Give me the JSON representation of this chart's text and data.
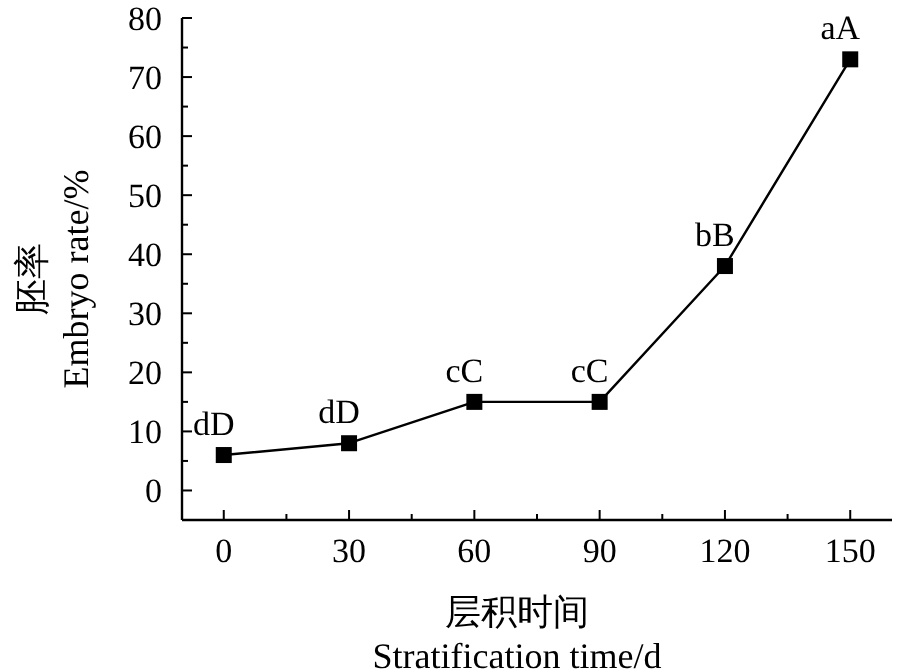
{
  "chart_data": {
    "type": "line",
    "xlabel": "层积时间\nStratification time/d",
    "ylabel": "胚率\nEmbryo rate/%",
    "x": [
      0,
      30,
      60,
      90,
      120,
      150
    ],
    "series": [
      {
        "color": "#000000",
        "values": [
          6,
          8,
          15,
          15,
          38,
          73
        ]
      }
    ],
    "xlim": [
      -10,
      160
    ],
    "xticks": [
      0,
      30,
      60,
      90,
      120,
      150
    ],
    "ylim": [
      -5,
      80
    ],
    "yticks": [
      0,
      10,
      20,
      30,
      40,
      50,
      60,
      70,
      80
    ],
    "marker": "square",
    "line_style": "solid",
    "grid": false,
    "annotations": [
      {
        "text": "dD",
        "x": 0,
        "y": 6
      },
      {
        "text": "dD",
        "x": 30,
        "y": 8
      },
      {
        "text": "cC",
        "x": 60,
        "y": 15
      },
      {
        "text": "cC",
        "x": 90,
        "y": 15
      },
      {
        "text": "bB",
        "x": 120,
        "y": 38
      },
      {
        "text": "aA",
        "x": 150,
        "y": 73
      }
    ]
  }
}
